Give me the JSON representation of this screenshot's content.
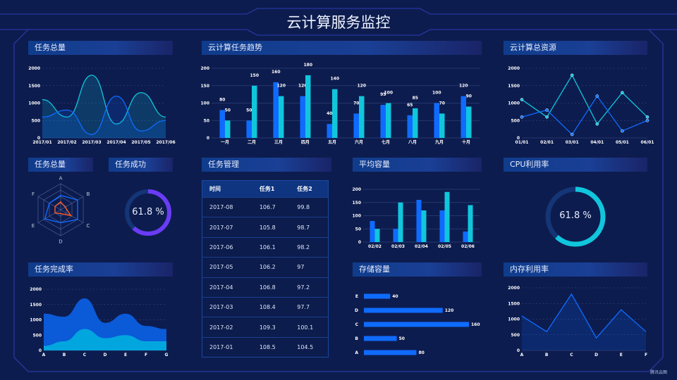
{
  "header": {
    "title": "云计算服务监控"
  },
  "watermark": "腾讯云图",
  "colors": {
    "blue": "#0f6bff",
    "cyan": "#10c6dc",
    "purple": "#6a3cf5",
    "orange": "#ff5a23",
    "track": "#143576"
  },
  "panels": {
    "task_total": "任务总量",
    "trend": "云计算任务趋势",
    "resources": "云计算总资源",
    "task_total_radar": "任务总量",
    "task_success": "任务成功",
    "task_mgmt": "任务管理",
    "avg_capacity": "平均容量",
    "cpu": "CPU利用率",
    "completion": "任务完成率",
    "storage": "存储容量",
    "memory": "内存利用率"
  },
  "task_success": {
    "value": 61.8,
    "label": "61.8 %"
  },
  "cpu": {
    "value": 61.8,
    "label": "61.8 %"
  },
  "table": {
    "headers": [
      "时间",
      "任务1",
      "任务2"
    ],
    "rows": [
      [
        "2017-08",
        "106.7",
        "99.8"
      ],
      [
        "2017-07",
        "105.8",
        "98.7"
      ],
      [
        "2017-06",
        "106.1",
        "98.2"
      ],
      [
        "2017-05",
        "106.2",
        "97"
      ],
      [
        "2017-04",
        "106.8",
        "97.2"
      ],
      [
        "2017-03",
        "108.4",
        "97.7"
      ],
      [
        "2017-02",
        "109.3",
        "100.1"
      ],
      [
        "2017-01",
        "108.5",
        "104.5"
      ]
    ]
  },
  "chart_data": [
    {
      "id": "task_total",
      "type": "area",
      "smooth": true,
      "categories": [
        "2017/01",
        "2017/02",
        "2017/03",
        "2017/04",
        "2017/05",
        "2017/06"
      ],
      "yticks": [
        0,
        500,
        1000,
        1500,
        2000
      ],
      "ylim": [
        0,
        2000
      ],
      "series": [
        {
          "color": "#10c6dc",
          "values": [
            1100,
            600,
            1800,
            400,
            1300,
            600
          ]
        },
        {
          "color": "#0f6bff",
          "values": [
            600,
            800,
            100,
            1200,
            200,
            500
          ]
        }
      ]
    },
    {
      "id": "trend",
      "type": "bar",
      "categories": [
        "一月",
        "二月",
        "三月",
        "四月",
        "五月",
        "六月",
        "七月",
        "八月",
        "九月",
        "十月"
      ],
      "yticks": [
        0,
        50,
        100,
        150,
        200
      ],
      "ylim": [
        0,
        200
      ],
      "data_labels": true,
      "series": [
        {
          "color": "#0f6bff",
          "values": [
            80,
            50,
            160,
            120,
            40,
            70,
            95,
            65,
            100,
            120
          ]
        },
        {
          "color": "#10c6dc",
          "values": [
            50,
            150,
            120,
            180,
            140,
            120,
            100,
            85,
            70,
            90
          ]
        }
      ]
    },
    {
      "id": "resources",
      "type": "line",
      "markers": true,
      "categories": [
        "01/01",
        "02/01",
        "03/01",
        "04/01",
        "05/01",
        "06/01"
      ],
      "yticks": [
        0,
        500,
        1000,
        1500,
        2000
      ],
      "ylim": [
        0,
        2000
      ],
      "series": [
        {
          "color": "#10c6dc",
          "values": [
            1100,
            600,
            1800,
            400,
            1300,
            600
          ]
        },
        {
          "color": "#0f6bff",
          "values": [
            600,
            800,
            100,
            1200,
            200,
            500
          ]
        }
      ]
    },
    {
      "id": "radar",
      "type": "radar",
      "indicators": [
        "A",
        "B",
        "C",
        "D",
        "E",
        "F"
      ],
      "max": 100,
      "series": [
        {
          "color": "#0f6bff",
          "values": [
            55,
            75,
            75,
            50,
            70,
            50
          ]
        },
        {
          "color": "#ff5a23",
          "values": [
            30,
            20,
            45,
            15,
            25,
            25
          ]
        }
      ]
    },
    {
      "id": "avg_capacity",
      "type": "bar",
      "categories": [
        "02/02",
        "02/03",
        "02/04",
        "02/05",
        "02/06"
      ],
      "yticks": [
        0,
        50,
        100,
        150,
        200
      ],
      "ylim": [
        0,
        200
      ],
      "series": [
        {
          "color": "#0f6bff",
          "values": [
            80,
            50,
            160,
            120,
            40
          ]
        },
        {
          "color": "#10c6dc",
          "values": [
            50,
            150,
            120,
            190,
            140
          ]
        }
      ]
    },
    {
      "id": "completion",
      "type": "stacked-area",
      "smooth": true,
      "categories": [
        "A",
        "B",
        "C",
        "D",
        "E",
        "F",
        "G"
      ],
      "yticks": [
        0,
        500,
        1000,
        1500,
        2000
      ],
      "ylim": [
        0,
        2000
      ],
      "series": [
        {
          "color": "#02a6de",
          "values": [
            150,
            300,
            700,
            400,
            500,
            300,
            300
          ]
        },
        {
          "color": "#0b5ad8",
          "values": [
            1050,
            800,
            1000,
            500,
            700,
            500,
            400
          ]
        }
      ]
    },
    {
      "id": "storage",
      "type": "hbar",
      "categories": [
        "A",
        "B",
        "C",
        "D",
        "E"
      ],
      "values": [
        80,
        50,
        160,
        120,
        40
      ],
      "xlim": [
        0,
        160
      ],
      "color": "#0f6bff"
    },
    {
      "id": "memory",
      "type": "area",
      "smooth": false,
      "categories": [
        "A",
        "B",
        "C",
        "D",
        "E",
        "F"
      ],
      "yticks": [
        0,
        500,
        1000,
        1500,
        2000
      ],
      "ylim": [
        0,
        2000
      ],
      "series": [
        {
          "color": "#0f6bff",
          "values": [
            1100,
            600,
            1800,
            400,
            1300,
            600
          ]
        }
      ]
    }
  ]
}
